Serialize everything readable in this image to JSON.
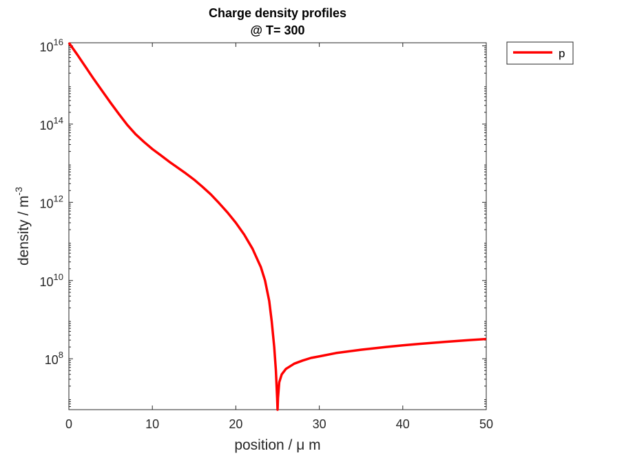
{
  "chart_data": {
    "type": "line",
    "title": [
      "Charge density profiles",
      "@ T= 300"
    ],
    "xlabel": "position / μ m",
    "ylabel": "density / m",
    "ylabel_sup": "-3",
    "xlim": [
      0,
      50
    ],
    "ylim": [
      5000000.0,
      1.2e+16
    ],
    "yscale": "log",
    "grid": false,
    "legend_position": "outside-top-right",
    "x_ticks": [
      0,
      10,
      20,
      30,
      40,
      50
    ],
    "x_tick_labels": [
      "0",
      "10",
      "20",
      "30",
      "40",
      "50"
    ],
    "y_ticks": [
      100000000.0,
      10000000000.0,
      1000000000000.0,
      100000000000000.0,
      1e+16
    ],
    "y_tick_labels": [
      {
        "base": "10",
        "exp": "8"
      },
      {
        "base": "10",
        "exp": "10"
      },
      {
        "base": "10",
        "exp": "12"
      },
      {
        "base": "10",
        "exp": "14"
      },
      {
        "base": "10",
        "exp": "16"
      }
    ],
    "series": [
      {
        "name": "p",
        "color": "#ff0000",
        "x": [
          0,
          1,
          2,
          3,
          4,
          5,
          6,
          7,
          8,
          9,
          10,
          11,
          12,
          13,
          14,
          15,
          16,
          17,
          18,
          19,
          20,
          21,
          22,
          23,
          23.5,
          24,
          24.3,
          24.6,
          24.8,
          24.95,
          25.0,
          25.05,
          25.2,
          25.5,
          26,
          27,
          28,
          29,
          30,
          32,
          35,
          38,
          40,
          42,
          45,
          48,
          50
        ],
        "y": [
          1.2e+16,
          6000000000000000.0,
          2900000000000000.0,
          1400000000000000.0,
          700000000000000.0,
          350000000000000.0,
          180000000000000.0,
          95000000000000.0,
          55000000000000.0,
          35000000000000.0,
          23000000000000.0,
          16000000000000.0,
          11000000000000.0,
          7800000000000.0,
          5500000000000.0,
          3800000000000.0,
          2500000000000.0,
          1600000000000.0,
          950000000000.0,
          550000000000.0,
          300000000000.0,
          150000000000.0,
          65000000000.0,
          22000000000.0,
          10000000000.0,
          3000000000.0,
          900000000.0,
          200000000.0,
          50000000.0,
          10000000.0,
          5000000.0,
          10000000.0,
          25000000.0,
          40000000.0,
          55000000.0,
          75000000.0,
          90000000.0,
          105000000.0,
          115000000.0,
          140000000.0,
          170000000.0,
          200000000.0,
          220000000.0,
          240000000.0,
          270000000.0,
          300000000.0,
          320000000.0
        ]
      }
    ]
  }
}
